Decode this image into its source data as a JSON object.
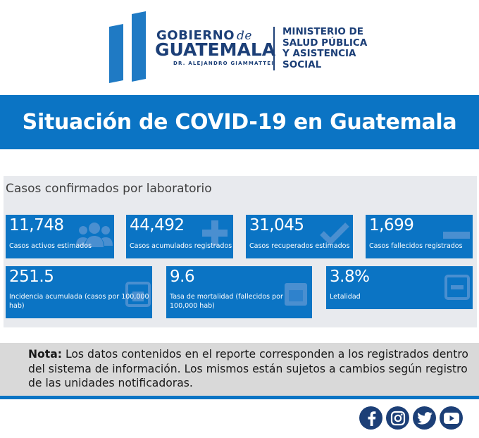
{
  "header": {
    "gob_line1": "GOBIERNO",
    "gob_de": "de",
    "gob_line2": "GUATEMALA",
    "gob_line3": "DR. ALEJANDRO GIAMMATTEI",
    "ministry_lines": [
      "MINISTERIO DE",
      "SALUD PÚBLICA",
      "Y ASISTENCIA",
      "SOCIAL"
    ]
  },
  "title": "Situación de COVID-19 en Guatemala",
  "lab": {
    "heading": "Casos confirmados por laboratorio",
    "row1": [
      {
        "value": "11,748",
        "label": "Casos activos estimados",
        "icon": "users-icon"
      },
      {
        "value": "44,492",
        "label": "Casos acumulados registrados",
        "icon": "plus-icon"
      },
      {
        "value": "31,045",
        "label": "Casos recuperados estimados",
        "icon": "check-icon"
      },
      {
        "value": "1,699",
        "label": "Casos fallecidos registrados",
        "icon": "minus-icon"
      }
    ],
    "row2": [
      {
        "value": "251.5",
        "label": "Incidencia acumulada (casos por 100,000 hab)",
        "icon": "calendar-box-icon"
      },
      {
        "value": "9.6",
        "label": "Tasa de mortalidad (fallecidos por 100,000 hab)",
        "icon": "calendar-box-icon"
      },
      {
        "value": "3.8%",
        "label": "Letalidad",
        "icon": "minus-box-icon"
      }
    ]
  },
  "note": {
    "lead": "Nota:",
    "text": " Los datos contenidos en el reporte corresponden a los registrados dentro del sistema de información. Los mismos están sujetos a cambios según registro de las unidades notificadoras."
  },
  "social": [
    "facebook-icon",
    "instagram-icon",
    "twitter-icon",
    "youtube-icon"
  ],
  "colors": {
    "brand_blue": "#0b74c4",
    "navy": "#1c3f77",
    "panel_bg": "#e8eaee",
    "note_bg": "#d9d9d9"
  }
}
